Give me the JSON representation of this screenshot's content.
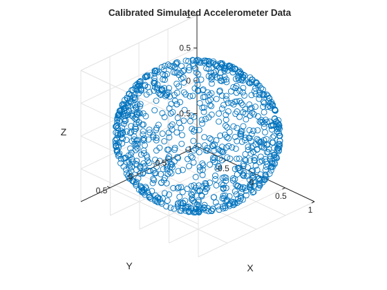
{
  "chart_data": {
    "type": "scatter",
    "title": "Calibrated Simulated Accelerometer Data",
    "xlabel": "X",
    "ylabel": "Y",
    "zlabel": "Z",
    "xlim": [
      -1,
      1
    ],
    "ylim": [
      -1,
      1
    ],
    "zlim": [
      -1,
      1
    ],
    "xticks": [
      -0.5,
      0,
      0.5,
      1
    ],
    "xtick_labels": [
      "-0.5",
      "0",
      "0.5",
      "1"
    ],
    "yticks": [
      -1,
      -0.5,
      0,
      0.5
    ],
    "ytick_labels": [
      "-1",
      "-0.5",
      "0",
      "0.5"
    ],
    "zticks": [
      -0.5,
      0,
      0.5,
      1
    ],
    "ztick_labels": [
      "-0.5",
      "0",
      "0.5",
      "1"
    ],
    "grid": true,
    "marker": "circle",
    "marker_color": "#0072BD",
    "series": [
      {
        "distribution": "points uniformly spread on the unit sphere x^2 + y^2 + z^2 = 1",
        "point_count": 1000,
        "center": [
          0,
          0,
          0
        ],
        "radius": 1
      }
    ]
  }
}
